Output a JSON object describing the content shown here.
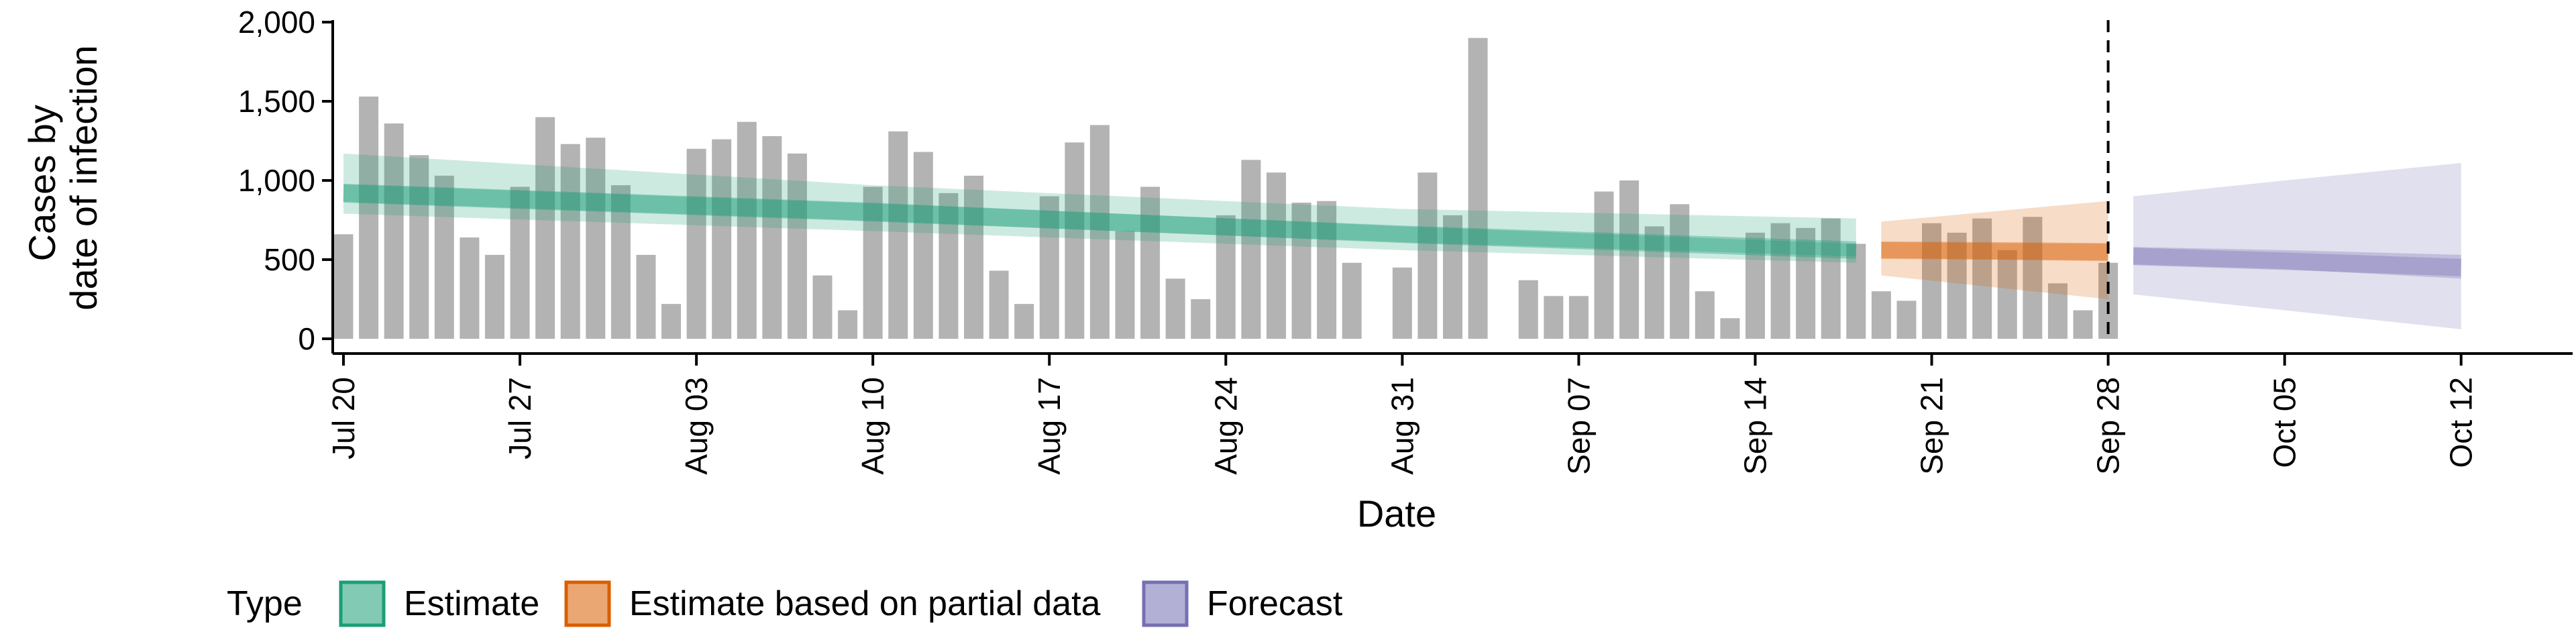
{
  "chart_data": {
    "type": "bar",
    "xlabel": "Date",
    "ylabel_lines": [
      "Cases by",
      "date of infection"
    ],
    "ylim": [
      0,
      2000
    ],
    "y_ticks": [
      0,
      500,
      1000,
      1500,
      2000
    ],
    "y_tick_labels": [
      "0",
      "500",
      "1,000",
      "1,500",
      "2,000"
    ],
    "x_range": [
      "2020-07-19",
      "2020-10-17"
    ],
    "x_ticks": [
      "2020-07-20",
      "2020-07-27",
      "2020-08-03",
      "2020-08-10",
      "2020-08-17",
      "2020-08-24",
      "2020-08-31",
      "2020-09-07",
      "2020-09-14",
      "2020-09-21",
      "2020-09-28",
      "2020-10-05",
      "2020-10-12"
    ],
    "x_tick_labels": [
      "Jul 20",
      "Jul 27",
      "Aug 03",
      "Aug 10",
      "Aug 17",
      "Aug 24",
      "Aug 31",
      "Sep 07",
      "Sep 14",
      "Sep 21",
      "Sep 28",
      "Oct 05",
      "Oct 12"
    ],
    "grid": false,
    "legend_position": "bottom-left",
    "legend_title": "Type",
    "bars": {
      "color": "#b3b3b3",
      "start_date": "2020-07-20",
      "values": [
        660,
        1530,
        1360,
        1160,
        1030,
        640,
        530,
        960,
        1400,
        1230,
        1270,
        970,
        530,
        220,
        1200,
        1260,
        1370,
        1280,
        1170,
        400,
        180,
        960,
        1310,
        1180,
        920,
        1030,
        430,
        220,
        900,
        1240,
        1350,
        680,
        960,
        380,
        250,
        780,
        1130,
        1050,
        860,
        870,
        480,
        null,
        450,
        1050,
        780,
        1900,
        null,
        370,
        270,
        270,
        930,
        1000,
        710,
        850,
        300,
        130,
        670,
        730,
        700,
        760,
        600,
        300,
        240,
        730,
        670,
        760,
        560,
        770,
        350,
        180,
        480
      ]
    },
    "vline_date": "2020-09-28",
    "series": [
      {
        "name": "Estimate",
        "fill": "#1b9e77",
        "line": "#1b9e77",
        "dates": [
          "2020-07-20",
          "2020-08-10",
          "2020-08-31",
          "2020-09-18"
        ],
        "median": [
          920,
          800,
          660,
          560
        ],
        "inner_low": [
          860,
          740,
          610,
          520
        ],
        "inner_high": [
          980,
          860,
          710,
          600
        ],
        "outer_low": [
          790,
          680,
          560,
          480
        ],
        "outer_high": [
          1170,
          970,
          820,
          760
        ]
      },
      {
        "name": "Estimate based on partial data",
        "fill": "#d95f02",
        "line": "#d95f02",
        "dates": [
          "2020-09-19",
          "2020-09-28"
        ],
        "median": [
          560,
          550
        ],
        "inner_low": [
          510,
          490
        ],
        "inner_high": [
          610,
          600
        ],
        "outer_low": [
          400,
          250
        ],
        "outer_high": [
          740,
          870
        ]
      },
      {
        "name": "Forecast",
        "fill": "#7570b3",
        "line": "#7570b3",
        "dates": [
          "2020-09-29",
          "2020-10-05",
          "2020-10-12"
        ],
        "median": [
          520,
          490,
          450
        ],
        "inner_low": [
          470,
          440,
          380
        ],
        "inner_high": [
          580,
          560,
          530
        ],
        "outer_low": [
          280,
          180,
          60
        ],
        "outer_high": [
          900,
          1000,
          1110
        ]
      }
    ]
  }
}
